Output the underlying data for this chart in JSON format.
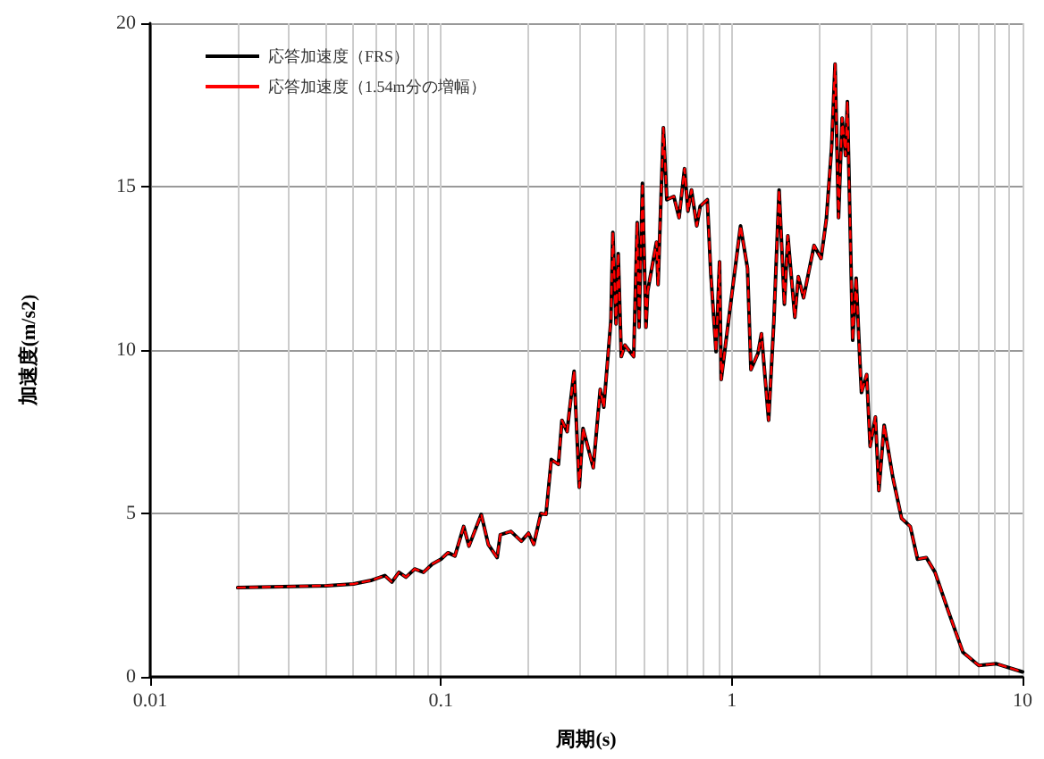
{
  "chart_data": {
    "type": "line",
    "xlabel": "周期(s)",
    "ylabel": "加速度(m/s2)",
    "log": "x",
    "grid": true,
    "legend": "top left",
    "marker": "none",
    "x": [
      0.02,
      0.0405,
      0.05,
      0.0574,
      0.0641,
      0.0678,
      0.0717,
      0.0758,
      0.0812,
      0.0871,
      0.0933,
      0.1,
      0.1057,
      0.1117,
      0.1197,
      0.1248,
      0.1376,
      0.1455,
      0.156,
      0.16,
      0.174,
      0.189,
      0.2,
      0.2085,
      0.2205,
      0.2297,
      0.2396,
      0.2535,
      0.2606,
      0.2716,
      0.2754,
      0.287,
      0.299,
      0.308,
      0.334,
      0.353,
      0.363,
      0.384,
      0.39,
      0.4,
      0.407,
      0.417,
      0.429,
      0.46,
      0.473,
      0.48,
      0.493,
      0.507,
      0.514,
      0.551,
      0.558,
      0.582,
      0.598,
      0.632,
      0.659,
      0.688,
      0.707,
      0.727,
      0.758,
      0.779,
      0.824,
      0.847,
      0.883,
      0.908,
      0.92,
      0.986,
      1.072,
      1.133,
      1.164,
      1.231,
      1.265,
      1.339,
      1.396,
      1.455,
      1.517,
      1.559,
      1.648,
      1.694,
      1.766,
      1.919,
      2.028,
      2.115,
      2.205,
      2.266,
      2.329,
      2.396,
      2.463,
      2.498,
      2.605,
      2.678,
      2.754,
      2.793,
      2.911,
      2.992,
      3.119,
      3.206,
      3.342,
      3.581,
      3.837,
      4.111,
      4.355,
      4.667,
      5.0,
      5.585,
      6.24,
      7.07,
      8.13,
      10
    ],
    "series": [
      {
        "name": "応答加速度（FRS）",
        "color": "#000000",
        "line_style": "solid",
        "values": [
          2.73,
          2.79,
          2.84,
          2.95,
          3.1,
          2.9,
          3.2,
          3.05,
          3.3,
          3.2,
          3.45,
          3.6,
          3.8,
          3.7,
          4.6,
          4.0,
          4.97,
          4.05,
          3.65,
          4.35,
          4.45,
          4.15,
          4.4,
          4.05,
          5.0,
          4.97,
          6.65,
          6.5,
          7.85,
          7.5,
          8.0,
          9.35,
          5.8,
          7.6,
          6.4,
          8.8,
          8.25,
          10.9,
          13.6,
          10.8,
          12.95,
          9.8,
          10.15,
          9.8,
          13.9,
          10.7,
          15.1,
          10.7,
          11.8,
          13.3,
          12.0,
          16.8,
          14.6,
          14.7,
          14.05,
          15.55,
          14.25,
          14.9,
          13.8,
          14.4,
          14.6,
          12.35,
          9.95,
          12.7,
          9.1,
          11.25,
          13.8,
          12.5,
          9.4,
          9.9,
          10.5,
          7.85,
          10.9,
          14.9,
          11.4,
          13.5,
          11.0,
          12.25,
          11.6,
          13.2,
          12.8,
          14.0,
          16.2,
          18.75,
          14.05,
          17.1,
          15.95,
          17.6,
          10.3,
          12.2,
          9.8,
          8.7,
          9.25,
          7.05,
          7.95,
          5.7,
          7.7,
          6.1,
          4.85,
          4.6,
          3.6,
          3.65,
          3.2,
          1.95,
          0.75,
          0.35,
          0.4,
          0.15
        ]
      },
      {
        "name": "応答加速度（1.54m分の増幅）",
        "color": "#ff0000",
        "line_style": "dashed",
        "values": [
          2.73,
          2.79,
          2.84,
          2.95,
          3.1,
          2.9,
          3.2,
          3.05,
          3.3,
          3.2,
          3.45,
          3.6,
          3.8,
          3.7,
          4.6,
          4.0,
          4.97,
          4.05,
          3.65,
          4.35,
          4.45,
          4.15,
          4.4,
          4.05,
          5.0,
          4.97,
          6.65,
          6.5,
          7.85,
          7.5,
          8.0,
          9.35,
          5.8,
          7.6,
          6.4,
          8.8,
          8.25,
          10.9,
          13.6,
          10.8,
          12.95,
          9.8,
          10.15,
          9.8,
          13.9,
          10.7,
          15.1,
          10.7,
          11.8,
          13.3,
          12.0,
          16.8,
          14.6,
          14.7,
          14.05,
          15.55,
          14.25,
          14.9,
          13.8,
          14.4,
          14.6,
          12.35,
          9.95,
          12.7,
          9.1,
          11.25,
          13.8,
          12.5,
          9.4,
          9.9,
          10.5,
          7.85,
          10.9,
          14.9,
          11.4,
          13.5,
          11.0,
          12.25,
          11.6,
          13.2,
          12.8,
          14.0,
          16.2,
          18.75,
          14.05,
          17.1,
          15.95,
          17.6,
          10.3,
          12.2,
          9.8,
          8.7,
          9.25,
          7.05,
          7.95,
          5.7,
          7.7,
          6.1,
          4.85,
          4.6,
          3.6,
          3.65,
          3.2,
          1.95,
          0.75,
          0.35,
          0.4,
          0.15
        ]
      }
    ],
    "xlim": [
      0.01,
      10
    ],
    "xticks": [
      0.01,
      {
        "value": 0.02,
        "label": null
      },
      {
        "value": 0.03,
        "label": null
      },
      {
        "value": 0.04,
        "label": null
      },
      {
        "value": 0.05,
        "label": null
      },
      {
        "value": 0.06,
        "label": null
      },
      {
        "value": 0.07,
        "label": null
      },
      {
        "value": 0.08,
        "label": null
      },
      {
        "value": 0.09,
        "label": null
      },
      0.1,
      {
        "value": 0.2,
        "label": null
      },
      {
        "value": 0.3,
        "label": null
      },
      {
        "value": 0.4,
        "label": null
      },
      {
        "value": 0.5,
        "label": null
      },
      {
        "value": 0.6,
        "label": null
      },
      {
        "value": 0.7,
        "label": null
      },
      {
        "value": 0.8,
        "label": null
      },
      {
        "value": 0.9,
        "label": null
      },
      1,
      {
        "value": 2,
        "label": null
      },
      {
        "value": 3,
        "label": null
      },
      {
        "value": 4,
        "label": null
      },
      {
        "value": 5,
        "label": null
      },
      {
        "value": 6,
        "label": null
      },
      {
        "value": 7,
        "label": null
      },
      {
        "value": 8,
        "label": null
      },
      {
        "value": 9,
        "label": null
      },
      10
    ],
    "ylim": [
      0,
      20
    ],
    "yticks": [
      0,
      5,
      10,
      15,
      20
    ]
  }
}
